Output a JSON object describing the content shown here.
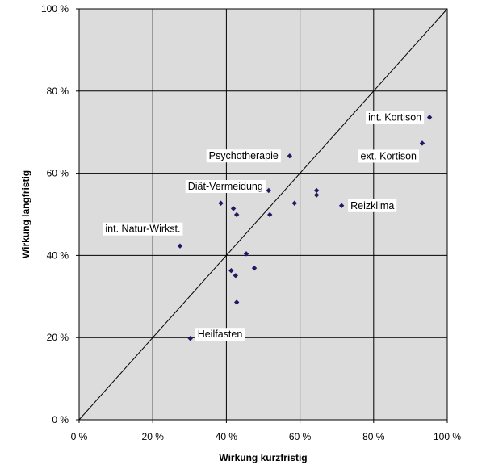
{
  "chart_data": {
    "type": "scatter",
    "xlabel": "Wirkung kurzfristig",
    "ylabel": "Wirkung langfristig",
    "xlim": [
      0,
      100
    ],
    "ylim": [
      0,
      100
    ],
    "x_ticks": [
      0,
      20,
      40,
      60,
      80,
      100
    ],
    "y_ticks": [
      0,
      20,
      40,
      60,
      80,
      100
    ],
    "x_tick_labels": [
      "0 %",
      "20 %",
      "40 %",
      "60 %",
      "80 %",
      "100 %"
    ],
    "y_tick_labels": [
      "0 %",
      "20 %",
      "40 %",
      "60 %",
      "80 %",
      "100 %"
    ],
    "grid": true,
    "reference_line": {
      "from": [
        0,
        0
      ],
      "to": [
        100,
        100
      ]
    },
    "colors": {
      "plot_bg": "#dcdcdc",
      "marker": "#1f1a66",
      "grid": "#000000"
    },
    "points": [
      {
        "x": 95.2,
        "y": 73.6,
        "label": "int. Kortison"
      },
      {
        "x": 93.2,
        "y": 67.3,
        "label": "ext. Kortison"
      },
      {
        "x": 57.2,
        "y": 64.2,
        "label": "Psychotherapie"
      },
      {
        "x": 51.5,
        "y": 55.8,
        "label": "Diät-Vermeidung"
      },
      {
        "x": 64.5,
        "y": 55.8,
        "label": ""
      },
      {
        "x": 64.5,
        "y": 54.7,
        "label": ""
      },
      {
        "x": 58.5,
        "y": 52.7,
        "label": ""
      },
      {
        "x": 71.3,
        "y": 52.1,
        "label": "Reizklima"
      },
      {
        "x": 38.5,
        "y": 52.7,
        "label": ""
      },
      {
        "x": 41.9,
        "y": 51.4,
        "label": ""
      },
      {
        "x": 42.8,
        "y": 49.9,
        "label": ""
      },
      {
        "x": 51.8,
        "y": 49.9,
        "label": ""
      },
      {
        "x": 27.4,
        "y": 42.3,
        "label": "int. Natur-Wirkst."
      },
      {
        "x": 45.4,
        "y": 40.4,
        "label": ""
      },
      {
        "x": 47.6,
        "y": 36.9,
        "label": ""
      },
      {
        "x": 41.3,
        "y": 36.3,
        "label": ""
      },
      {
        "x": 42.5,
        "y": 35.1,
        "label": ""
      },
      {
        "x": 42.8,
        "y": 28.6,
        "label": ""
      },
      {
        "x": 30.2,
        "y": 19.8,
        "label": "Heilfasten"
      }
    ]
  }
}
